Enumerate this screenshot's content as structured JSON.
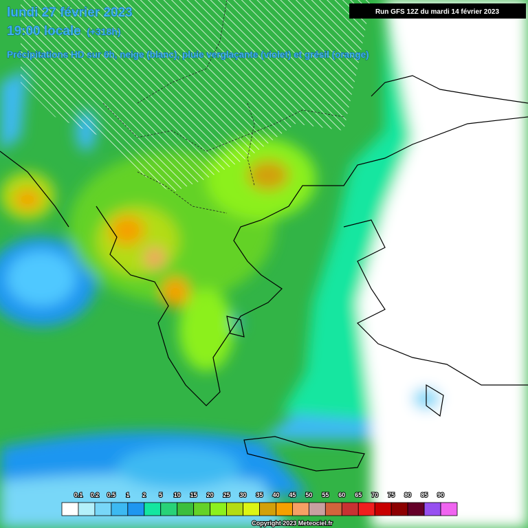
{
  "header": {
    "date": "lundi 27 février 2023",
    "time": "19:00 locale",
    "lead": "(+318h)",
    "subtitle": "Précipitations HD sur 6h, neige (blanc), pluie verglaçante (violet) et grésil (orange)",
    "run": "Run GFS 12Z du mardi 14 février 2023"
  },
  "legend": {
    "labels": [
      0.1,
      0.2,
      0.5,
      1,
      2,
      5,
      10,
      15,
      20,
      25,
      30,
      35,
      40,
      45,
      50,
      55,
      60,
      65,
      70,
      75,
      80,
      85,
      90
    ],
    "colors": [
      "#ffffff",
      "#b4f0fa",
      "#78d7f8",
      "#3cb9f2",
      "#1e96f0",
      "#14e6a0",
      "#28d278",
      "#3cbe3c",
      "#64d228",
      "#8cf01e",
      "#b4dc14",
      "#dcf514",
      "#d2a00a",
      "#f5a000",
      "#f5a064",
      "#c8a0a0",
      "#d2643c",
      "#c83232",
      "#f01e1e",
      "#c80000",
      "#8c0000",
      "#640028",
      "#9650f0",
      "#f064f0"
    ]
  },
  "footer": {
    "copyright": "Copyright 2023 Meteociel.fr"
  }
}
